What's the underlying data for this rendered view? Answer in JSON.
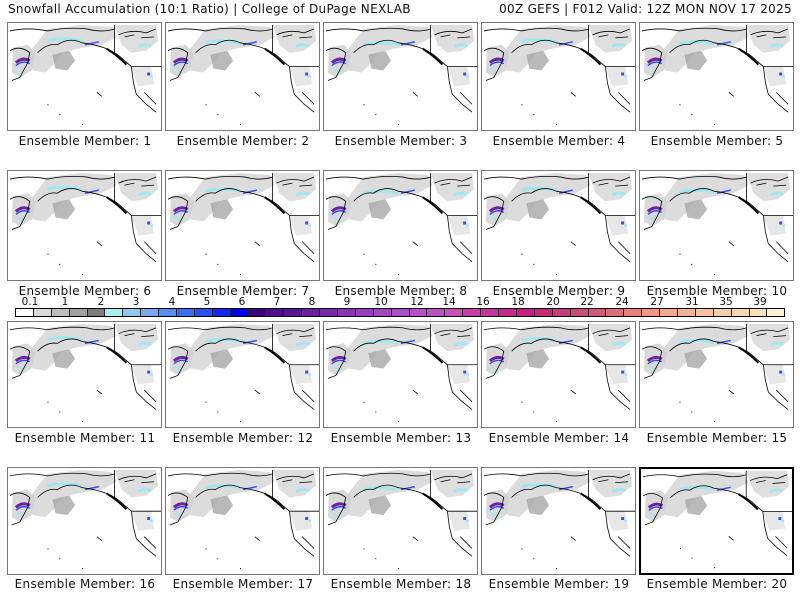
{
  "header": {
    "title": "Snowfall Accumulation (10:1 Ratio) | College of DuPage NEXLAB",
    "run_info": "00Z GEFS | F012 Valid: 12Z MON NOV 17 2025"
  },
  "panels": [
    {
      "label": "Ensemble Member: 1"
    },
    {
      "label": "Ensemble Member: 2"
    },
    {
      "label": "Ensemble Member: 3"
    },
    {
      "label": "Ensemble Member: 4"
    },
    {
      "label": "Ensemble Member: 5"
    },
    {
      "label": "Ensemble Member: 6"
    },
    {
      "label": "Ensemble Member: 7"
    },
    {
      "label": "Ensemble Member: 8"
    },
    {
      "label": "Ensemble Member: 9"
    },
    {
      "label": "Ensemble Member: 10"
    },
    {
      "label": "Ensemble Member: 11"
    },
    {
      "label": "Ensemble Member: 12"
    },
    {
      "label": "Ensemble Member: 13"
    },
    {
      "label": "Ensemble Member: 14"
    },
    {
      "label": "Ensemble Member: 15"
    },
    {
      "label": "Ensemble Member: 16"
    },
    {
      "label": "Ensemble Member: 17"
    },
    {
      "label": "Ensemble Member: 18"
    },
    {
      "label": "Ensemble Member: 19"
    },
    {
      "label": "Ensemble Member: 20",
      "selected": true
    }
  ],
  "colorbar": {
    "labels": [
      "0.1",
      "1",
      "2",
      "3",
      "4",
      "5",
      "6",
      "7",
      "8",
      "9",
      "10",
      "12",
      "14",
      "16",
      "18",
      "20",
      "22",
      "24",
      "27",
      "31",
      "35",
      "39"
    ],
    "colors": [
      "#ffffff",
      "#d9d9d9",
      "#bdbdbd",
      "#a0a0a0",
      "#7d7d7d",
      "#a8f0f0",
      "#8cc8f0",
      "#78aaf0",
      "#5a8cf0",
      "#3c6ef0",
      "#2850f0",
      "#1428f0",
      "#0000f0",
      "#3c0078",
      "#500a8c",
      "#5a1496",
      "#6e1ea0",
      "#7828aa",
      "#8c32b4",
      "#963cbe",
      "#a046be",
      "#aa50c8",
      "#b450c8",
      "#be50be",
      "#c850b4",
      "#c83caa",
      "#c8329b",
      "#c8288c",
      "#c81e82",
      "#c82878",
      "#c83c78",
      "#c84b78",
      "#d25a78",
      "#dc6e78",
      "#e68278",
      "#f09682",
      "#f0aa8c",
      "#f0b496",
      "#f5c3a0",
      "#f5cdaa",
      "#f5d7b4",
      "#fae1be",
      "#fff0d2"
    ]
  },
  "map_features": {
    "snow_light_color": "#d0d0d0",
    "snow_mid_color": "#a8a8a8",
    "snow_cyan_color": "#a0e8f0",
    "snow_blue_color": "#3050f0",
    "snow_purple_color": "#7020a0",
    "coast_color": "#000000"
  }
}
